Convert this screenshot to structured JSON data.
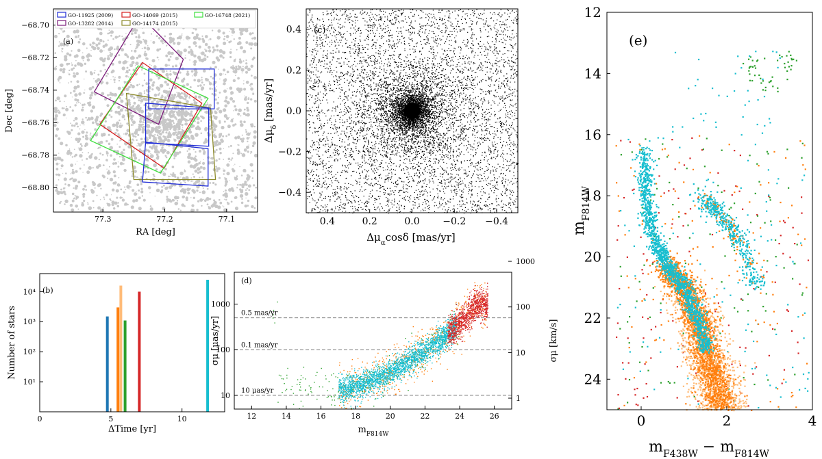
{
  "colors": {
    "blue": "#1f2cd6",
    "purple": "#7a1a7a",
    "red": "#d62020",
    "green": "#3ee03e",
    "olive": "#8c8a2a",
    "sky": "#17becf",
    "orange": "#ff7f0e",
    "peach": "#ffbb78",
    "tblue": "#1f77b4",
    "tgreen": "#2ca02c",
    "tred": "#d62728",
    "gray": "#c8c8c8"
  },
  "chart_data": [
    {
      "panel": "(a)",
      "type": "scatter",
      "xlabel": "RA [deg]",
      "ylabel": "Dec [deg]",
      "xlim": [
        77.38,
        77.05
      ],
      "ylim": [
        -68.815,
        -68.69
      ],
      "xticks": [
        "77.3",
        "77.2",
        "77.1"
      ],
      "xtick_values": [
        77.3,
        77.2,
        77.1
      ],
      "yticks": [
        "−68.70",
        "−68.72",
        "−68.74",
        "−68.76",
        "−68.78",
        "−68.80"
      ],
      "ytick_values": [
        -68.7,
        -68.72,
        -68.74,
        -68.76,
        -68.78,
        -68.8
      ],
      "legend": [
        {
          "label": "GO-11925 (2009)",
          "color": "blue"
        },
        {
          "label": "GO-14069 (2015)",
          "color": "red"
        },
        {
          "label": "GO-16748 (2021)",
          "color": "green"
        },
        {
          "label": "GO-13282 (2014)",
          "color": "purple"
        },
        {
          "label": "GO-14174 (2015)",
          "color": "olive"
        }
      ],
      "footprints": [
        {
          "name": "GO-13282 (2014)",
          "color": "purple",
          "corners": [
            [
              77.24,
              -68.694
            ],
            [
              77.17,
              -68.721
            ],
            [
              77.21,
              -68.761
            ],
            [
              77.314,
              -68.741
            ]
          ]
        },
        {
          "name": "GO-14069 (2015)",
          "color": "red",
          "corners": [
            [
              77.236,
              -68.723
            ],
            [
              77.14,
              -68.748
            ],
            [
              77.201,
              -68.788
            ],
            [
              77.305,
              -68.761
            ]
          ]
        },
        {
          "name": "GO-16748 (2021)",
          "color": "green",
          "corners": [
            [
              77.243,
              -68.725
            ],
            [
              77.13,
              -68.745
            ],
            [
              77.207,
              -68.791
            ],
            [
              77.32,
              -68.771
            ]
          ]
        },
        {
          "name": "GO-14174 (2015)",
          "color": "olive",
          "corners": [
            [
              77.262,
              -68.742
            ],
            [
              77.126,
              -68.751
            ],
            [
              77.118,
              -68.795
            ],
            [
              77.25,
              -68.795
            ]
          ]
        },
        {
          "name": "GO-11925 (2009) A",
          "color": "blue",
          "corners": [
            [
              77.226,
              -68.727
            ],
            [
              77.12,
              -68.727
            ],
            [
              77.12,
              -68.7515
            ],
            [
              77.226,
              -68.7515
            ]
          ]
        },
        {
          "name": "GO-11925 (2009) B",
          "color": "blue",
          "corners": [
            [
              77.231,
              -68.748
            ],
            [
              77.129,
              -68.751
            ],
            [
              77.129,
              -68.7745
            ],
            [
              77.231,
              -68.7725
            ]
          ]
        },
        {
          "name": "GO-11925 (2009) C",
          "color": "blue",
          "corners": [
            [
              77.231,
              -68.772
            ],
            [
              77.13,
              -68.776
            ],
            [
              77.13,
              -68.799
            ],
            [
              77.236,
              -68.7965
            ]
          ]
        }
      ]
    },
    {
      "panel": "(b)",
      "type": "bar",
      "xlabel": "ΔTime [yr]",
      "ylabel": "Number of stars",
      "xlim": [
        0,
        13
      ],
      "xticks": [
        "0",
        "5",
        "10"
      ],
      "xtick_values": [
        0,
        5,
        10
      ],
      "yscale": "log",
      "ylim": [
        1,
        40000
      ],
      "yticks": [
        "10¹",
        "10²",
        "10³",
        "10⁴"
      ],
      "ytick_values": [
        10,
        100,
        1000,
        10000
      ],
      "bars": [
        {
          "x": 4.75,
          "value": 1500,
          "color": "tblue"
        },
        {
          "x": 5.5,
          "value": 3000,
          "color": "orange"
        },
        {
          "x": 5.7,
          "value": 16000,
          "color": "peach"
        },
        {
          "x": 6.0,
          "value": 1100,
          "color": "tgreen"
        },
        {
          "x": 7.0,
          "value": 10000,
          "color": "tred"
        },
        {
          "x": 11.8,
          "value": 25000,
          "color": "sky"
        }
      ]
    },
    {
      "panel": "(c)",
      "type": "scatter",
      "xlabel": "Δμαcosδ [mas/yr]",
      "ylabel": "Δμδ [mas/yr]",
      "xlim": [
        0.5,
        -0.5
      ],
      "ylim": [
        -0.5,
        0.5
      ],
      "xticks": [
        "0.4",
        "0.2",
        "0.0",
        "−0.2",
        "−0.4"
      ],
      "xtick_values": [
        0.4,
        0.2,
        0.0,
        -0.2,
        -0.4
      ],
      "yticks": [
        "0.4",
        "0.2",
        "0.0",
        "−0.2",
        "−0.4"
      ],
      "ytick_values": [
        0.4,
        0.2,
        0.0,
        -0.2,
        -0.4
      ],
      "center": [
        0.0,
        0.0
      ]
    },
    {
      "panel": "(d)",
      "type": "scatter",
      "xlabel": "mF814W",
      "ylabel": "σμ [μas/yr]",
      "ylabel_right": "σμ [km/s]",
      "xlim": [
        11,
        27
      ],
      "xticks": [
        "12",
        "14",
        "16",
        "18",
        "20",
        "22",
        "24",
        "26"
      ],
      "xtick_values": [
        12,
        14,
        16,
        18,
        20,
        22,
        24,
        26
      ],
      "yscale": "log",
      "ylim": [
        5,
        5000
      ],
      "yticks": [
        "10",
        "100",
        "1000"
      ],
      "ytick_values": [
        10,
        100,
        1000
      ],
      "y2ticks": [
        "1",
        "10",
        "100",
        "1000"
      ],
      "reference_lines": [
        {
          "value": 500,
          "label": "0.5 mas/yr"
        },
        {
          "value": 100,
          "label": "0.1 mas/yr"
        },
        {
          "value": 10,
          "label": "10 μas/yr"
        }
      ],
      "trend": [
        [
          13.5,
          16
        ],
        [
          15,
          14
        ],
        [
          17,
          13
        ],
        [
          18,
          16
        ],
        [
          19,
          22
        ],
        [
          20,
          33
        ],
        [
          21,
          55
        ],
        [
          22,
          100
        ],
        [
          23,
          180
        ],
        [
          24,
          400
        ],
        [
          25,
          1000
        ]
      ]
    },
    {
      "panel": "(e)",
      "type": "scatter",
      "xlabel": "mF438W − mF814W",
      "ylabel": "mF814W",
      "xlim": [
        -0.8,
        4.0
      ],
      "ylim": [
        25,
        12
      ],
      "xticks": [
        "0",
        "2",
        "4"
      ],
      "xtick_values": [
        0,
        2,
        4
      ],
      "yticks": [
        "12",
        "14",
        "16",
        "18",
        "20",
        "22",
        "24"
      ],
      "ytick_values": [
        12,
        14,
        16,
        18,
        20,
        22,
        24
      ],
      "sequences": [
        {
          "name": "main sequence",
          "points": [
            [
              0.05,
              16.5
            ],
            [
              0.1,
              18.2
            ],
            [
              0.3,
              19.5
            ],
            [
              0.6,
              20.3
            ],
            [
              1.0,
              21.0
            ],
            [
              1.3,
              22.0
            ],
            [
              1.5,
              23.0
            ],
            [
              1.7,
              24.0
            ],
            [
              1.9,
              25.0
            ]
          ]
        },
        {
          "name": "giant branch",
          "points": [
            [
              1.4,
              18.0
            ],
            [
              1.8,
              18.5
            ],
            [
              2.3,
              19.5
            ],
            [
              2.7,
              21.0
            ]
          ]
        },
        {
          "name": "bright stars",
          "points": [
            [
              3.0,
              14.2
            ],
            [
              2.6,
              13.8
            ],
            [
              3.4,
              13.6
            ]
          ]
        }
      ]
    }
  ],
  "panel_labels": {
    "a": "(a)",
    "b": "(b)",
    "c": "(c)",
    "d": "(d)",
    "e": "(e)"
  }
}
